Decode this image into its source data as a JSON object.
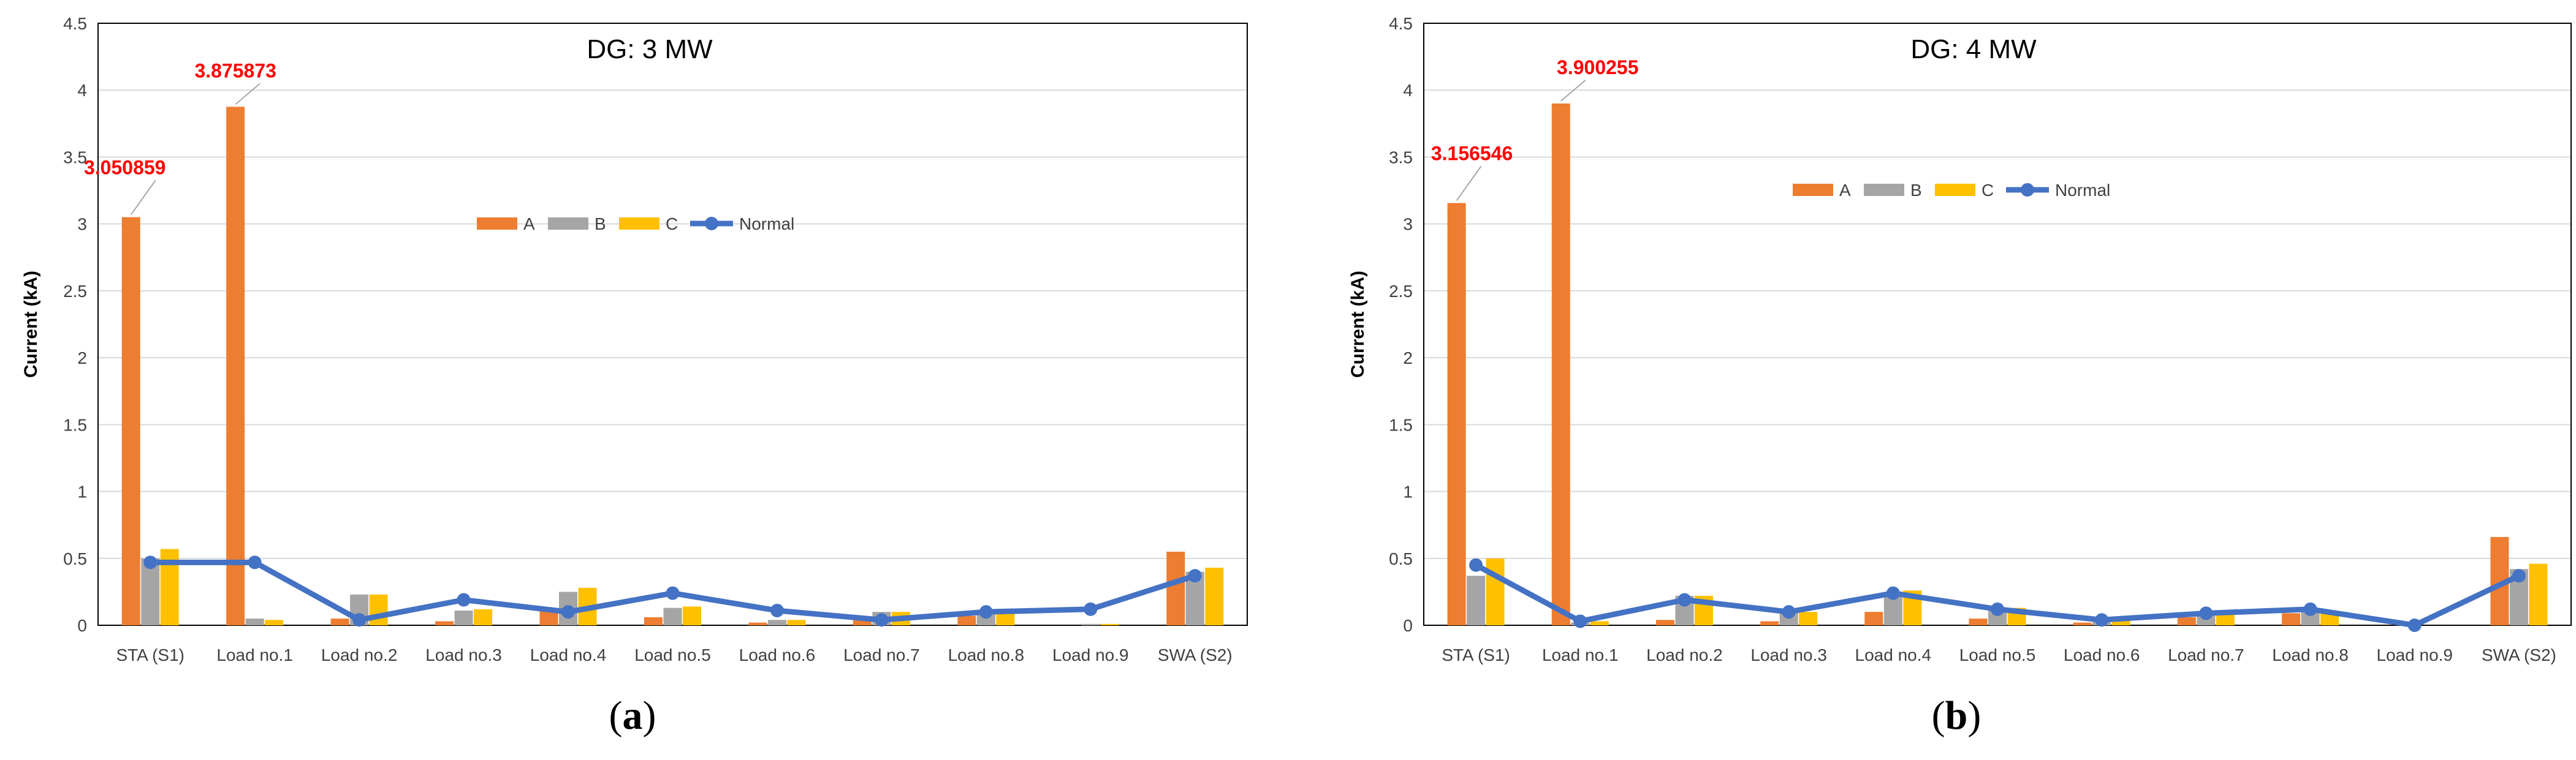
{
  "colors": {
    "A": "#ed7d31",
    "B": "#a5a5a5",
    "C": "#ffc000",
    "Normal": "#4472c4",
    "annotation": "#ff0000"
  },
  "chart_data": [
    {
      "type": "bar",
      "panel": "a",
      "title": "DG: 3 MW",
      "ylabel": "Current (kA)",
      "xlabel": "",
      "ylim": [
        0,
        4.5
      ],
      "yticks": [
        "0",
        "0.5",
        "1",
        "1.5",
        "2",
        "2.5",
        "3",
        "3.5",
        "4",
        "4.5"
      ],
      "grid": true,
      "legend": "center",
      "categories": [
        "STA (S1)",
        "Load no.1",
        "Load no.2",
        "Load no.3",
        "Load no.4",
        "Load no.5",
        "Load no.6",
        "Load no.7",
        "Load no.8",
        "Load no.9",
        "SWA (S2)"
      ],
      "series": [
        {
          "name": "A",
          "type": "bar",
          "values": [
            3.050859,
            3.875873,
            0.05,
            0.03,
            0.12,
            0.06,
            0.02,
            0.04,
            0.07,
            0.0,
            0.55
          ]
        },
        {
          "name": "B",
          "type": "bar",
          "values": [
            0.5,
            0.05,
            0.23,
            0.11,
            0.25,
            0.13,
            0.04,
            0.1,
            0.1,
            0.01,
            0.4
          ]
        },
        {
          "name": "C",
          "type": "bar",
          "values": [
            0.57,
            0.04,
            0.23,
            0.12,
            0.28,
            0.14,
            0.04,
            0.1,
            0.1,
            0.01,
            0.43
          ]
        },
        {
          "name": "Normal",
          "type": "line",
          "values": [
            0.47,
            0.47,
            0.04,
            0.19,
            0.1,
            0.24,
            0.11,
            0.04,
            0.1,
            0.12,
            0.37
          ]
        }
      ],
      "annotations": [
        {
          "text": "3.050859",
          "category": "STA (S1)",
          "value": 3.050859
        },
        {
          "text": "3.875873",
          "category": "Load no.1",
          "value": 3.875873
        }
      ]
    },
    {
      "type": "bar",
      "panel": "b",
      "title": "DG: 4 MW",
      "ylabel": "Current (kA)",
      "xlabel": "",
      "ylim": [
        0,
        4.5
      ],
      "yticks": [
        "0",
        "0.5",
        "1",
        "1.5",
        "2",
        "2.5",
        "3",
        "3.5",
        "4",
        "4.5"
      ],
      "grid": true,
      "legend": "center",
      "categories": [
        "STA (S1)",
        "Load no.1",
        "Load no.2",
        "Load no.3",
        "Load no.4",
        "Load no.5",
        "Load no.6",
        "Load no.7",
        "Load no.8",
        "Load no.9",
        "SWA (S2)"
      ],
      "series": [
        {
          "name": "A",
          "type": "bar",
          "values": [
            3.156546,
            3.900255,
            0.04,
            0.03,
            0.1,
            0.05,
            0.02,
            0.06,
            0.09,
            0.0,
            0.66
          ]
        },
        {
          "name": "B",
          "type": "bar",
          "values": [
            0.37,
            0.02,
            0.22,
            0.1,
            0.25,
            0.12,
            0.04,
            0.09,
            0.11,
            0.0,
            0.42
          ]
        },
        {
          "name": "C",
          "type": "bar",
          "values": [
            0.5,
            0.03,
            0.22,
            0.1,
            0.26,
            0.13,
            0.04,
            0.09,
            0.1,
            0.0,
            0.46
          ]
        },
        {
          "name": "Normal",
          "type": "line",
          "values": [
            0.45,
            0.03,
            0.19,
            0.1,
            0.24,
            0.12,
            0.04,
            0.09,
            0.12,
            0.0,
            0.37
          ]
        }
      ],
      "annotations": [
        {
          "text": "3.156546",
          "category": "STA (S1)",
          "value": 3.156546
        },
        {
          "text": "3.900255",
          "category": "Load no.1",
          "value": 3.900255
        }
      ]
    }
  ],
  "panel_labels": [
    {
      "open": "(",
      "letter": "a",
      "close": ")"
    },
    {
      "open": "(",
      "letter": "b",
      "close": ")"
    }
  ]
}
